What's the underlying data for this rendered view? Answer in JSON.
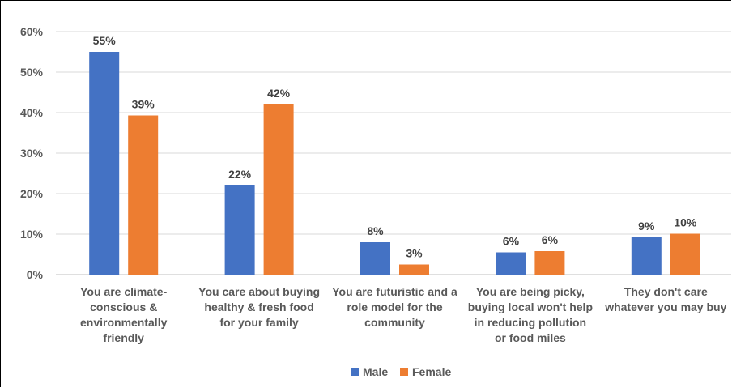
{
  "chart_data": {
    "type": "bar",
    "title": "",
    "xlabel": "",
    "ylabel": "",
    "ylim": [
      0,
      0.6
    ],
    "yticks": [
      "0%",
      "10%",
      "20%",
      "30%",
      "40%",
      "50%",
      "60%"
    ],
    "grid": true,
    "legend": "bottom",
    "categories": [
      [
        "You are climate-",
        "conscious &",
        "environmentally",
        "friendly"
      ],
      [
        "You care about buying",
        "healthy & fresh food",
        "for your family"
      ],
      [
        "You are futuristic and a",
        "role model for the",
        "community"
      ],
      [
        "You are being picky,",
        "buying local won't help",
        "in reducing pollution",
        "or food miles"
      ],
      [
        "They don't care",
        "whatever you may buy"
      ]
    ],
    "series": [
      {
        "name": "Male",
        "color": "#4472C4",
        "values": [
          0.55,
          0.22,
          0.08,
          0.055,
          0.092
        ],
        "labels": [
          "55%",
          "22%",
          "8%",
          "6%",
          "9%"
        ]
      },
      {
        "name": "Female",
        "color": "#ED7D31",
        "values": [
          0.393,
          0.42,
          0.025,
          0.058,
          0.101
        ],
        "labels": [
          "39%",
          "42%",
          "3%",
          "6%",
          "10%"
        ]
      }
    ]
  }
}
